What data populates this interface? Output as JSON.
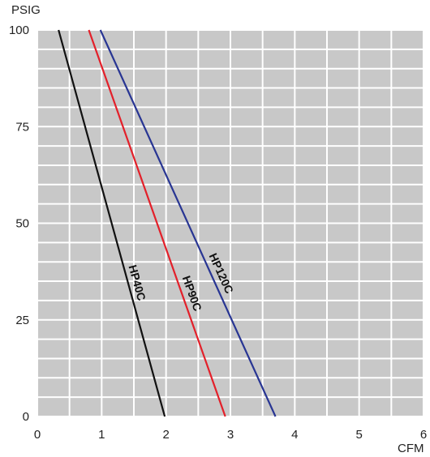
{
  "chart_data": {
    "type": "line",
    "title": "",
    "xlabel": "CFM",
    "ylabel": "PSIG",
    "xlim": [
      0,
      6
    ],
    "ylim": [
      0,
      100
    ],
    "x_ticks": [
      "0",
      "1",
      "2",
      "3",
      "4",
      "5",
      "6"
    ],
    "y_ticks": [
      "0",
      "25",
      "50",
      "75",
      "100"
    ],
    "grid": true,
    "background_color": "#c8c8c8",
    "grid_color": "#ffffff",
    "legend": "none (series labeled inline on lines)",
    "series": [
      {
        "name": "HP40C",
        "color": "#111111",
        "x": [
          0.33,
          1.98
        ],
        "y": [
          100,
          0
        ]
      },
      {
        "name": "HP90C",
        "color": "#e3202a",
        "x": [
          0.8,
          2.92
        ],
        "y": [
          100,
          0
        ]
      },
      {
        "name": "HP120C",
        "color": "#283593",
        "x": [
          0.98,
          3.7
        ],
        "y": [
          100,
          0
        ]
      }
    ]
  }
}
